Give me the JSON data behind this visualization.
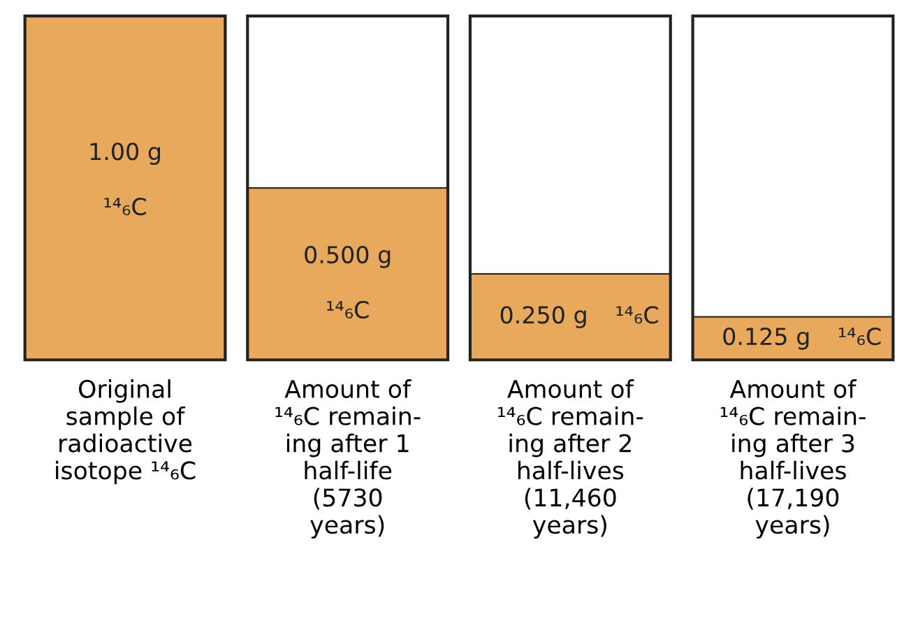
{
  "chart_data": {
    "type": "bar",
    "categories": [
      "Original\nsample of\nradioactive\nisotope ¹⁴₆C",
      "Amount of\n¹⁴₆C remain-\ning after 1\nhalf-life\n(5730\nyears)",
      "Amount of\n¹⁴₆C remain-\ning after 2\nhalf-lives\n(11,460\nyears)",
      "Amount of\n¹⁴₆C remain-\ning after 3\nhalf-lives\n(17,190\nyears)"
    ],
    "values": [
      1.0,
      0.5,
      0.25,
      0.125
    ],
    "value_labels": [
      "1.00 g",
      "0.500 g",
      "0.250 g",
      "0.125 g"
    ],
    "annotations": [
      "¹⁴₆C",
      "¹⁴₆C",
      "¹⁴₆C",
      "¹⁴₆C"
    ],
    "color": "#e8a95c",
    "grid": false,
    "legend": false
  }
}
